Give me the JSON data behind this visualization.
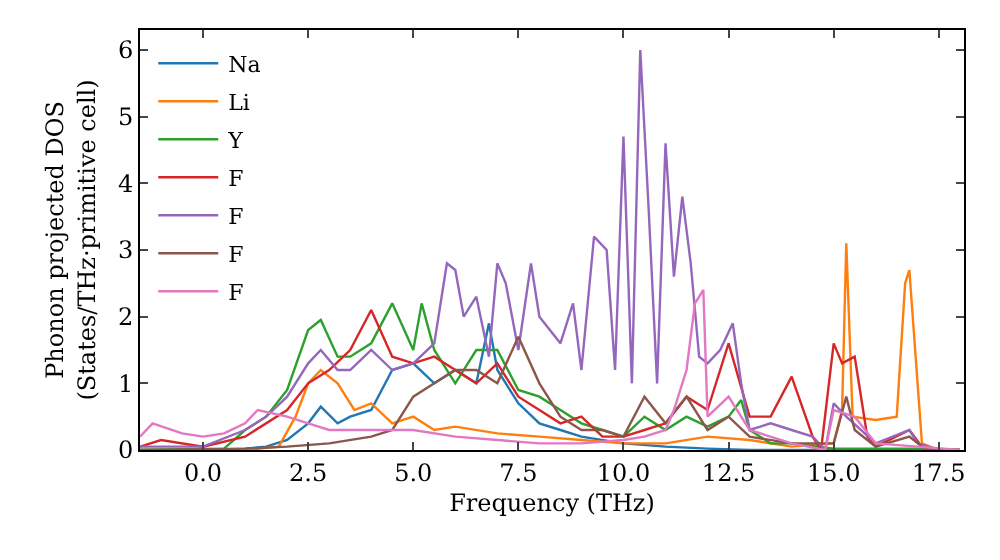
{
  "chart_data": {
    "type": "line",
    "xlabel": "Frequency (THz)",
    "ylabel": "Phonon projected DOS\n(States/THz·primitive cell)",
    "xlim": [
      -1.5,
      18.1
    ],
    "ylim": [
      0,
      6.3
    ],
    "xticks": [
      {
        "value": 0,
        "label": "0.0"
      },
      2.5,
      {
        "value": 5,
        "label": "5.0"
      },
      7.5,
      {
        "value": 10,
        "label": "10.0"
      },
      12.5,
      {
        "value": 15,
        "label": "15.0"
      },
      17.5
    ],
    "yticks": [
      0,
      1,
      2,
      3,
      4,
      5,
      6
    ],
    "legend": "top left",
    "marker": "none",
    "line_style": "solid",
    "series": [
      {
        "name": "Na",
        "color": "#1f77b4",
        "x": [
          -1.5,
          0,
          1,
          1.5,
          2,
          2.5,
          2.8,
          3.2,
          3.5,
          4,
          4.5,
          5,
          5.5,
          6,
          6.5,
          6.8,
          7,
          7.5,
          8,
          8.5,
          9,
          10,
          11,
          12,
          13,
          15,
          17,
          18
        ],
        "values": [
          0,
          0,
          0.02,
          0.05,
          0.15,
          0.4,
          0.65,
          0.4,
          0.5,
          0.6,
          1.2,
          1.3,
          1.0,
          1.2,
          1.0,
          1.9,
          1.2,
          0.7,
          0.4,
          0.3,
          0.2,
          0.1,
          0.05,
          0.02,
          0,
          0,
          0,
          0
        ]
      },
      {
        "name": "Li",
        "color": "#ff7f0e",
        "x": [
          -1.5,
          1,
          1.8,
          2.2,
          2.5,
          2.8,
          3.2,
          3.6,
          4,
          4.5,
          5,
          5.5,
          6,
          7,
          8,
          9,
          10,
          11,
          12,
          13,
          14,
          15,
          15.2,
          15.3,
          15.45,
          16,
          16.5,
          16.7,
          16.8,
          17.1,
          17.5,
          18
        ],
        "values": [
          0,
          0,
          0.05,
          0.5,
          1.0,
          1.2,
          1.0,
          0.6,
          0.7,
          0.4,
          0.5,
          0.3,
          0.35,
          0.25,
          0.2,
          0.15,
          0.1,
          0.1,
          0.2,
          0.15,
          0.05,
          0.1,
          0.6,
          3.1,
          0.5,
          0.45,
          0.5,
          2.5,
          2.7,
          0.1,
          0,
          0
        ]
      },
      {
        "name": "Y",
        "color": "#2ca02c",
        "x": [
          -1.5,
          0.5,
          1,
          1.5,
          2,
          2.5,
          2.8,
          3.2,
          3.5,
          4,
          4.5,
          5,
          5.2,
          5.5,
          6,
          6.5,
          7,
          7.5,
          8,
          8.5,
          9,
          9.5,
          10,
          10.5,
          11,
          11.5,
          12,
          12.5,
          12.8,
          13,
          13.5,
          14,
          15,
          16,
          17,
          18
        ],
        "values": [
          0,
          0.02,
          0.3,
          0.5,
          0.9,
          1.8,
          1.95,
          1.4,
          1.4,
          1.6,
          2.2,
          1.5,
          2.2,
          1.5,
          1.0,
          1.5,
          1.5,
          0.9,
          0.8,
          0.6,
          0.4,
          0.3,
          0.2,
          0.5,
          0.3,
          0.5,
          0.35,
          0.5,
          0.75,
          0.3,
          0.1,
          0.1,
          0.02,
          0.02,
          0.02,
          0
        ]
      },
      {
        "name": "F",
        "color": "#d62728",
        "x": [
          -1.5,
          -1,
          0,
          1,
          2,
          2.5,
          3,
          3.5,
          4,
          4.5,
          5,
          5.5,
          6,
          6.5,
          7,
          7.5,
          8,
          8.5,
          9,
          9.5,
          10,
          10.5,
          11,
          11.5,
          12,
          12.5,
          13,
          13.5,
          14,
          14.5,
          14.7,
          15,
          15.2,
          15.5,
          15.8,
          16,
          16.8,
          17.1,
          17.5,
          18
        ],
        "values": [
          0.05,
          0.15,
          0.05,
          0.2,
          0.6,
          1.0,
          1.2,
          1.5,
          2.1,
          1.4,
          1.3,
          1.4,
          1.2,
          1.0,
          1.3,
          0.8,
          0.6,
          0.4,
          0.5,
          0.2,
          0.2,
          0.3,
          0.4,
          0.8,
          0.6,
          1.6,
          0.5,
          0.5,
          1.1,
          0.2,
          0,
          1.6,
          1.3,
          1.4,
          0.2,
          0.05,
          0.3,
          0.05,
          0,
          0
        ]
      },
      {
        "name": "F",
        "color": "#9467bd",
        "x": [
          -1.5,
          0,
          1,
          1.5,
          2,
          2.5,
          2.8,
          3.2,
          3.5,
          4,
          4.5,
          5,
          5.5,
          5.8,
          6,
          6.2,
          6.5,
          6.8,
          7,
          7.2,
          7.5,
          7.8,
          8,
          8.5,
          8.8,
          9,
          9.3,
          9.6,
          9.8,
          10,
          10.2,
          10.4,
          10.6,
          10.8,
          11,
          11.2,
          11.4,
          11.6,
          11.8,
          12,
          12.3,
          12.6,
          12.8,
          13,
          13.5,
          14,
          14.5,
          14.8,
          15,
          15.3,
          16,
          16.8,
          17,
          17.5,
          18
        ],
        "values": [
          0.05,
          0.05,
          0.3,
          0.5,
          0.8,
          1.3,
          1.5,
          1.2,
          1.2,
          1.5,
          1.2,
          1.3,
          1.6,
          2.8,
          2.7,
          2.0,
          2.3,
          1.4,
          2.8,
          2.5,
          1.5,
          2.8,
          2.0,
          1.6,
          2.2,
          1.2,
          3.2,
          3.0,
          1.2,
          4.7,
          1.0,
          6.0,
          3.6,
          1.0,
          4.6,
          2.6,
          3.8,
          2.8,
          1.4,
          1.3,
          1.5,
          1.9,
          1.0,
          0.3,
          0.4,
          0.3,
          0.2,
          0,
          0.7,
          0.5,
          0.1,
          0.3,
          0.1,
          0,
          0
        ]
      },
      {
        "name": "F",
        "color": "#8c564b",
        "x": [
          -1.5,
          1,
          2,
          3,
          4,
          4.5,
          5,
          5.5,
          6,
          6.5,
          7,
          7.5,
          8,
          8.5,
          9,
          9.5,
          10,
          10.5,
          11,
          11.5,
          12,
          12.5,
          13,
          14,
          15,
          15.3,
          15.5,
          16,
          16.8,
          17.2,
          18
        ],
        "values": [
          0,
          0.02,
          0.05,
          0.1,
          0.2,
          0.3,
          0.8,
          1.0,
          1.2,
          1.2,
          1.0,
          1.7,
          1.0,
          0.5,
          0.3,
          0.3,
          0.2,
          0.8,
          0.4,
          0.8,
          0.3,
          0.5,
          0.2,
          0.1,
          0.1,
          0.8,
          0.3,
          0.05,
          0.2,
          0,
          0
        ]
      },
      {
        "name": "F",
        "color": "#e377c2",
        "x": [
          -1.5,
          -1.2,
          -0.5,
          0,
          0.5,
          1,
          1.3,
          2,
          2.5,
          3,
          4,
          5,
          6,
          7,
          8,
          9,
          10,
          10.5,
          11,
          11.2,
          11.5,
          11.7,
          11.9,
          12,
          12.5,
          13,
          14,
          14.8,
          15,
          15.5,
          16,
          17,
          18
        ],
        "values": [
          0.2,
          0.4,
          0.25,
          0.2,
          0.25,
          0.4,
          0.6,
          0.5,
          0.4,
          0.3,
          0.3,
          0.3,
          0.2,
          0.15,
          0.1,
          0.1,
          0.15,
          0.2,
          0.3,
          0.6,
          1.2,
          2.2,
          2.4,
          0.5,
          0.8,
          0.3,
          0.1,
          0,
          0.6,
          0.5,
          0.1,
          0.05,
          0
        ]
      }
    ]
  }
}
